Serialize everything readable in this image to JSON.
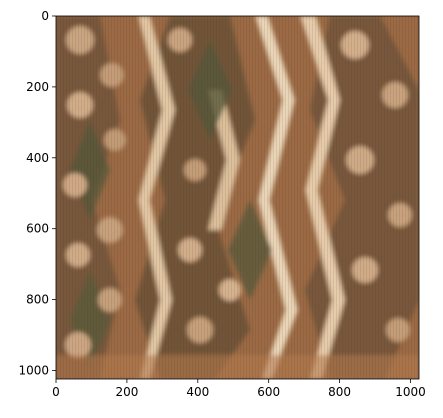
{
  "image": {
    "subject": "woven textile pattern",
    "palette": [
      "#9c6a45",
      "#c99a72",
      "#6b5138",
      "#5e5a3a",
      "#e8d3b8",
      "#b57c52"
    ]
  },
  "axes": {
    "x_ticks": [
      "0",
      "200",
      "400",
      "600",
      "800",
      "1000"
    ],
    "y_ticks": [
      "0",
      "200",
      "400",
      "600",
      "800",
      "1000"
    ],
    "x_range": [
      0,
      1024
    ],
    "y_range": [
      1024,
      0
    ]
  }
}
